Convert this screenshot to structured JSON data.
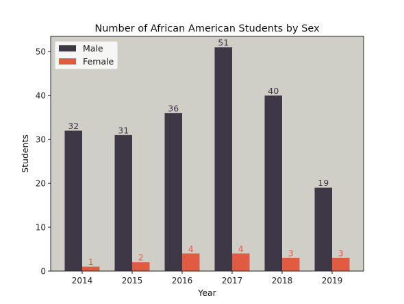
{
  "chart_data": {
    "type": "bar",
    "title": "Number of African American Students by Sex",
    "xlabel": "Year",
    "ylabel": "Students",
    "categories": [
      "2014",
      "2015",
      "2016",
      "2017",
      "2018",
      "2019"
    ],
    "series": [
      {
        "name": "Male",
        "values": [
          32,
          31,
          36,
          51,
          40,
          19
        ],
        "color": "#3e3745"
      },
      {
        "name": "Female",
        "values": [
          1,
          2,
          4,
          4,
          3,
          3
        ],
        "color": "#e05b41"
      }
    ],
    "ylim": [
      0,
      53.5
    ],
    "yticks": [
      0,
      10,
      20,
      30,
      40,
      50
    ],
    "legend": "top-left",
    "grid": false,
    "plot_background": "#cfcfc8",
    "data_labels": true,
    "colors": {
      "male_label": "#3e3745",
      "female_label": "#e05b41"
    }
  }
}
